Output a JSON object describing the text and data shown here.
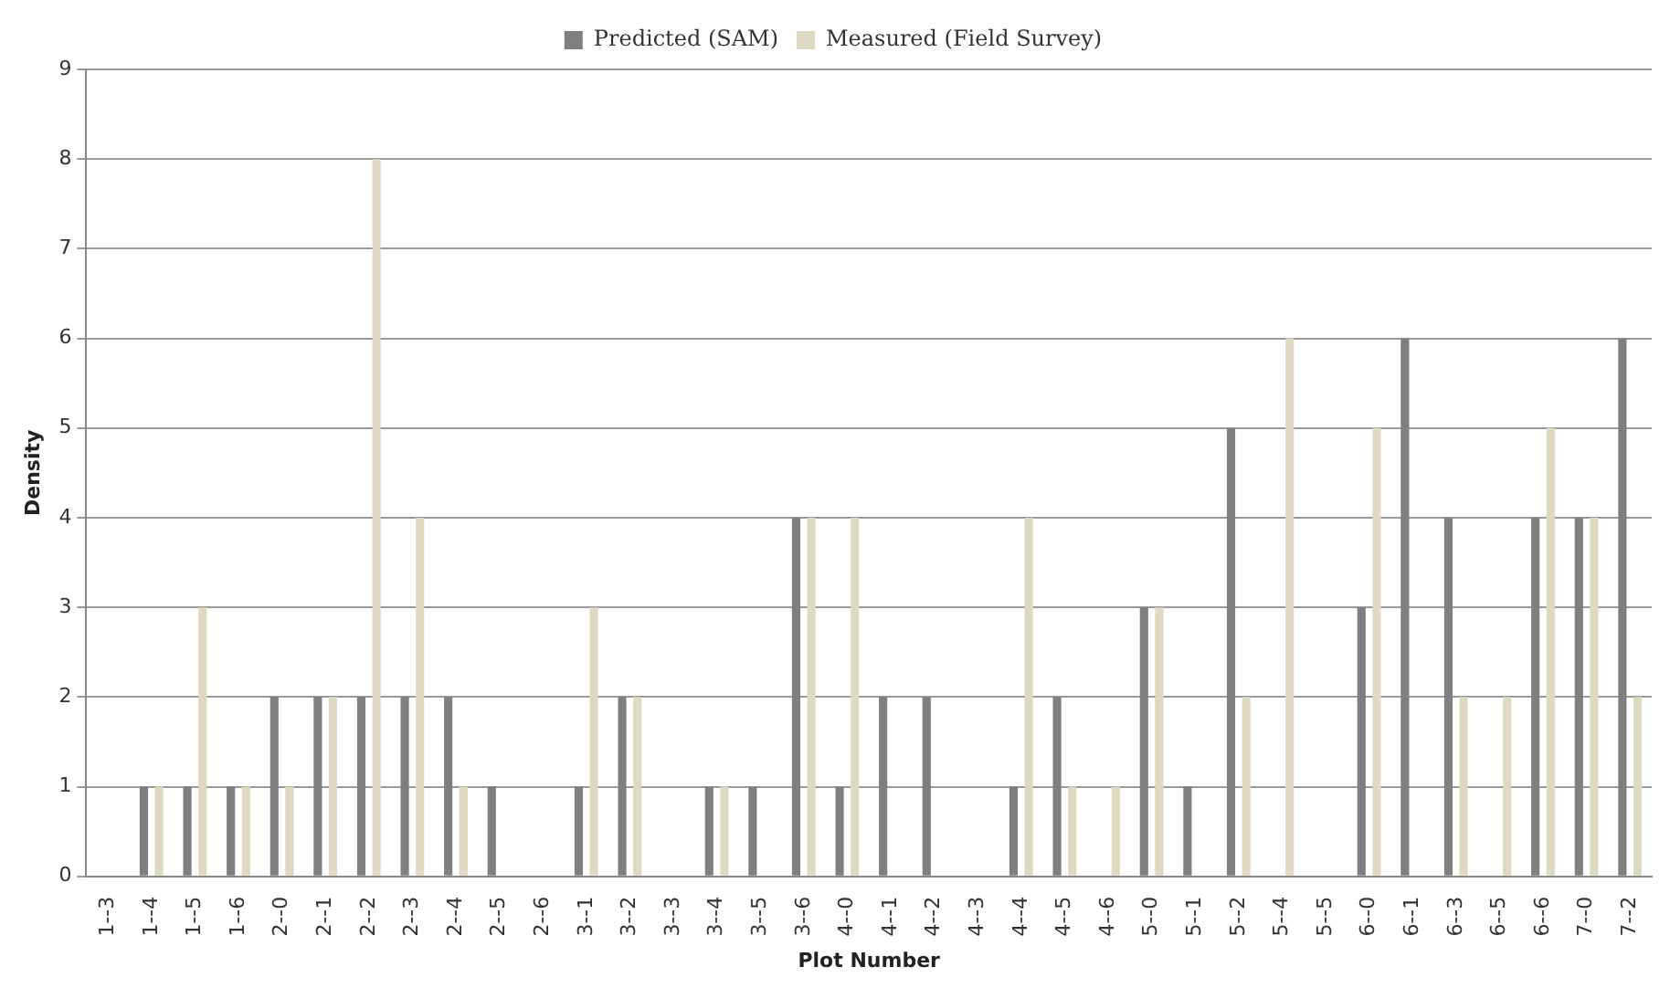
{
  "chart_data": {
    "type": "bar",
    "xlabel": "Plot Number",
    "ylabel": "Density",
    "categories": [
      "1--3",
      "1--4",
      "1--5",
      "1--6",
      "2--0",
      "2--1",
      "2--2",
      "2--3",
      "2--4",
      "2--5",
      "2--6",
      "3--1",
      "3--2",
      "3--3",
      "3--4",
      "3--5",
      "3--6",
      "4--0",
      "4--1",
      "4--2",
      "4--3",
      "4--4",
      "4--5",
      "4--6",
      "5--0",
      "5--1",
      "5--2",
      "5--4",
      "5--5",
      "6--0",
      "6--1",
      "6--3",
      "6--5",
      "6--6",
      "7--0",
      "7--2"
    ],
    "series": [
      {
        "name": "Predicted (SAM)",
        "color": "#7f7f7f",
        "values": [
          0,
          1,
          1,
          1,
          2,
          2,
          2,
          2,
          2,
          1,
          0,
          1,
          2,
          0,
          1,
          1,
          4,
          1,
          2,
          2,
          0,
          1,
          2,
          0,
          3,
          1,
          5,
          0,
          0,
          3,
          6,
          4,
          0,
          4,
          4,
          6
        ]
      },
      {
        "name": "Measured (Field Survey)",
        "color": "#ddd9c3",
        "values": [
          0,
          1,
          3,
          1,
          1,
          2,
          8,
          4,
          1,
          0,
          0,
          3,
          2,
          0,
          1,
          0,
          4,
          4,
          0,
          0,
          0,
          4,
          1,
          1,
          3,
          0,
          2,
          6,
          0,
          5,
          0,
          2,
          2,
          5,
          4,
          2
        ]
      }
    ],
    "ylim": [
      0,
      9
    ],
    "yticks": [
      0,
      1,
      2,
      3,
      4,
      5,
      6,
      7,
      8,
      9
    ],
    "grid": "y",
    "legend": "top"
  }
}
